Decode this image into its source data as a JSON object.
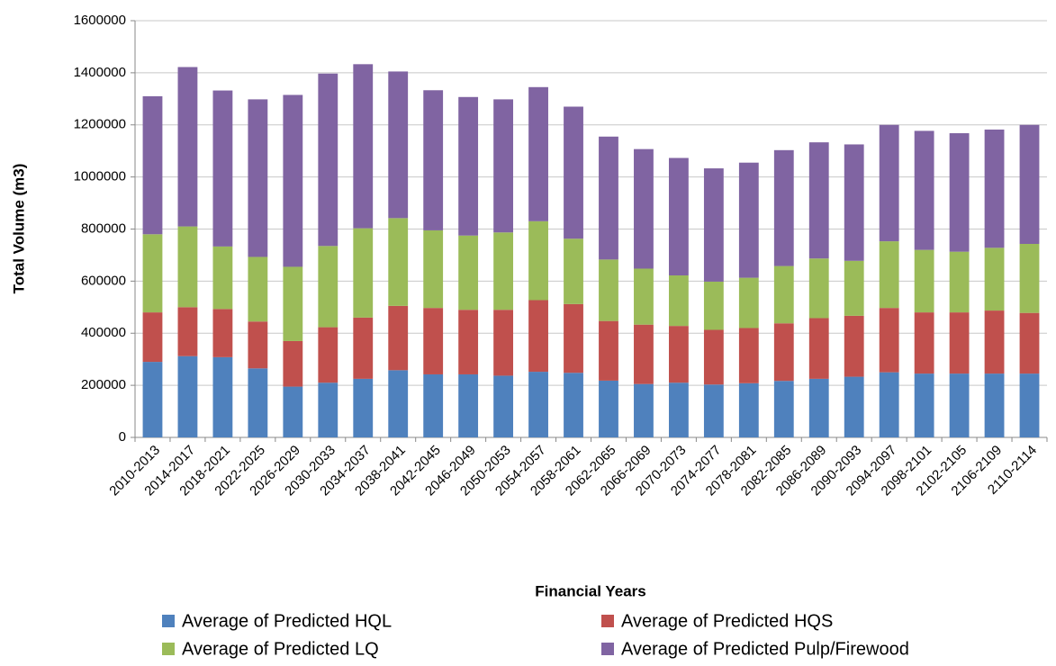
{
  "chart_data": {
    "type": "stacked-bar",
    "x_label": "Financial Years",
    "y_label": "Total Volume (m3)",
    "categories": [
      "2010-2013",
      "2014-2017",
      "2018-2021",
      "2022-2025",
      "2026-2029",
      "2030-2033",
      "2034-2037",
      "2038-2041",
      "2042-2045",
      "2046-2049",
      "2050-2053",
      "2054-2057",
      "2058-2061",
      "2062-2065",
      "2066-2069",
      "2070-2073",
      "2074-2077",
      "2078-2081",
      "2082-2085",
      "2086-2089",
      "2090-2093",
      "2094-2097",
      "2098-2101",
      "2102-2105",
      "2106-2109",
      "2110-2114"
    ],
    "series": [
      {
        "name": "Average of Predicted HQL",
        "color": "#4f81bd",
        "values": [
          290000,
          312000,
          308000,
          265000,
          195000,
          210000,
          225000,
          258000,
          242000,
          242000,
          237000,
          252000,
          248000,
          218000,
          205000,
          210000,
          203000,
          208000,
          217000,
          225000,
          233000,
          250000,
          245000,
          245000,
          245000,
          245000
        ]
      },
      {
        "name": "Average of Predicted HQS",
        "color": "#c0504d",
        "values": [
          190000,
          188000,
          185000,
          180000,
          175000,
          213000,
          235000,
          247000,
          255000,
          248000,
          253000,
          275000,
          264000,
          229000,
          228000,
          218000,
          210000,
          212000,
          221000,
          233000,
          234000,
          247000,
          235000,
          235000,
          242000,
          233000
        ]
      },
      {
        "name": "Average of Predicted LQ",
        "color": "#9bbb59",
        "values": [
          300000,
          310000,
          240000,
          248000,
          285000,
          312000,
          343000,
          337000,
          298000,
          285000,
          297000,
          303000,
          251000,
          236000,
          215000,
          194000,
          185000,
          193000,
          220000,
          229000,
          211000,
          256000,
          240000,
          233000,
          241000,
          265000
        ]
      },
      {
        "name": "Average of Predicted Pulp/Firewood",
        "color": "#8064a2",
        "values": [
          530000,
          612000,
          599000,
          605000,
          660000,
          662000,
          630000,
          563000,
          538000,
          532000,
          511000,
          515000,
          507000,
          472000,
          459000,
          451000,
          435000,
          442000,
          445000,
          446000,
          447000,
          447000,
          457000,
          455000,
          454000,
          457000
        ]
      }
    ],
    "ylim": [
      0,
      1600000
    ],
    "yticks": [
      0,
      200000,
      400000,
      600000,
      800000,
      1000000,
      1200000,
      1400000,
      1600000
    ],
    "grid": true
  }
}
